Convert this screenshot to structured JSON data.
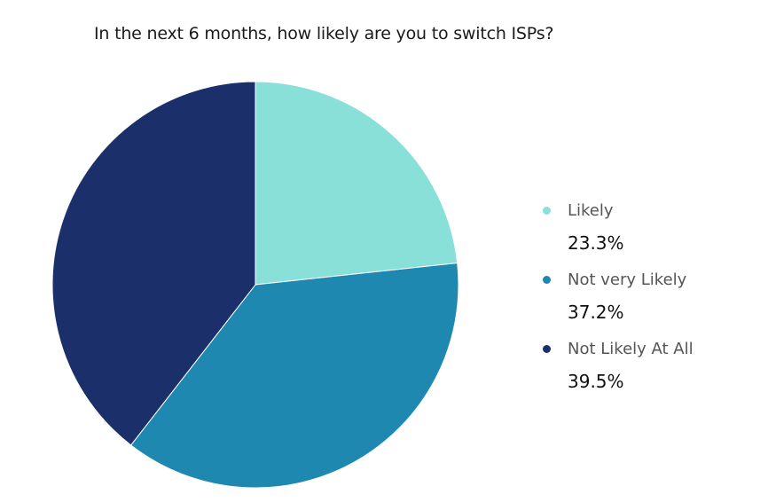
{
  "chart_data": {
    "type": "pie",
    "title": "In the next 6 months, how likely are you to switch ISPs?",
    "slices": [
      {
        "label": "Likely",
        "value": 23.3,
        "display": "23.3%",
        "color": "#88e0d8"
      },
      {
        "label": "Not very Likely",
        "value": 37.2,
        "display": "37.2%",
        "color": "#1e88b0"
      },
      {
        "label": "Not Likely At All",
        "value": 39.5,
        "display": "39.5%",
        "color": "#1b2f6b"
      }
    ],
    "start_angle_deg": 0,
    "direction": "clockwise",
    "legend_position": "right"
  }
}
